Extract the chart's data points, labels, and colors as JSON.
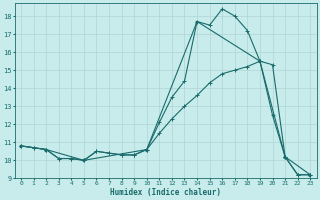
{
  "xlabel": "Humidex (Indice chaleur)",
  "ylabel": "",
  "bg_color": "#c8ecec",
  "grid_color": "#b0d4d4",
  "line_color": "#1a6b6b",
  "xlim": [
    -0.5,
    23.5
  ],
  "ylim": [
    9,
    18.7
  ],
  "yticks": [
    9,
    10,
    11,
    12,
    13,
    14,
    15,
    16,
    17,
    18
  ],
  "xticks": [
    0,
    1,
    2,
    3,
    4,
    5,
    6,
    7,
    8,
    9,
    10,
    11,
    12,
    13,
    14,
    15,
    16,
    17,
    18,
    19,
    20,
    21,
    22,
    23
  ],
  "series1_x": [
    0,
    1,
    2,
    3,
    4,
    5,
    6,
    7,
    8,
    9,
    10,
    11,
    12,
    13,
    14,
    15,
    16,
    17,
    18,
    19,
    20,
    21,
    22,
    23
  ],
  "series1_y": [
    10.8,
    10.7,
    10.6,
    10.1,
    10.1,
    10.0,
    10.5,
    10.4,
    10.3,
    10.3,
    10.6,
    12.1,
    13.5,
    14.4,
    17.7,
    17.5,
    18.4,
    18.0,
    17.2,
    15.5,
    12.5,
    10.2,
    9.2,
    9.2
  ],
  "series2_x": [
    0,
    1,
    2,
    3,
    4,
    5,
    6,
    7,
    8,
    9,
    10,
    11,
    12,
    13,
    14,
    15,
    16,
    17,
    18,
    19,
    20,
    21,
    22,
    23
  ],
  "series2_y": [
    10.8,
    10.7,
    10.6,
    10.1,
    10.1,
    10.0,
    10.5,
    10.4,
    10.3,
    10.3,
    10.6,
    11.5,
    12.3,
    13.0,
    13.6,
    14.3,
    14.8,
    15.0,
    15.2,
    15.5,
    15.3,
    10.2,
    9.2,
    9.2
  ],
  "series3_x": [
    0,
    2,
    5,
    10,
    14,
    19,
    21,
    23
  ],
  "series3_y": [
    10.8,
    10.6,
    10.0,
    10.6,
    17.7,
    15.5,
    10.2,
    9.2
  ]
}
